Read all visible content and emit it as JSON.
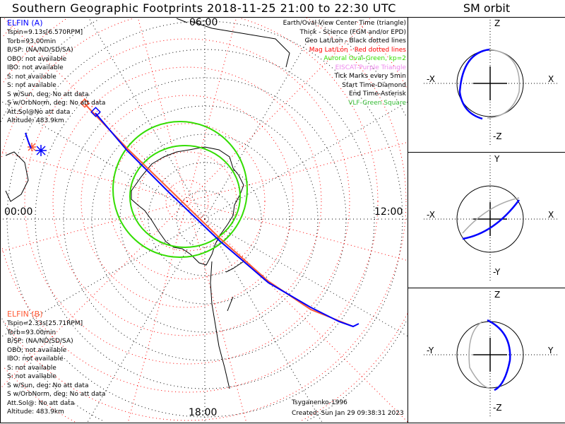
{
  "title": "Southern Geographic Footprints 2018-11-25 21:00 to 22:30 UTC",
  "sm_title": "SM orbit",
  "elfin_a": {
    "name": "ELFIN (A)",
    "color": "#0000ff",
    "lines": [
      "Tspin=9.13s[6.570RPM]",
      "Torb=93.00min",
      "B/SP: (NA/ND/SD/SA)",
      "OBO: not available",
      "IBO: not available",
      "S: not available",
      "S: not available",
      "S w/Sun, deg: No att data",
      "S w/OrbNorm, deg: No att data",
      "Att.Sol@No att data",
      "Altitude: 483.9km"
    ]
  },
  "elfin_b": {
    "name": "ELFIN (B)",
    "color": "#ff5a36",
    "lines": [
      "Tspin=2.33s[25.71RPM]",
      "Torb=93.00min",
      "B/SP: (NA/ND/SD/SA)",
      "OBO: not available",
      "IBO: not available",
      "S: not available",
      "S: not available",
      "S w/Sun, deg: No att data",
      "S w/OrbNorm, deg: No att data",
      "Att.Sol@: No att data",
      "Altitude: 483.9km"
    ]
  },
  "legend": [
    {
      "text": "Earth/Oval View Center Time (triangle)",
      "color": "#000000"
    },
    {
      "text": "Thick - Science (FGM and/or EPD)",
      "color": "#000000"
    },
    {
      "text": "Geo Lat/Lon - Black dotted lines",
      "color": "#000000"
    },
    {
      "text": "Mag Lat/Lon - Red dotted lines",
      "color": "#ff0000"
    },
    {
      "text": "Auroral Oval-Green, kp=2",
      "color": "#33dd00"
    },
    {
      "text": "EISCAT-Purple Triangle",
      "color": "#ee88ee"
    },
    {
      "text": "Tick Marks every 5min",
      "color": "#000000"
    },
    {
      "text": "Start Time-Diamond",
      "color": "#000000"
    },
    {
      "text": "End Time-Asterisk",
      "color": "#000000"
    },
    {
      "text": "VLF-Green Square",
      "color": "#33bb33"
    }
  ],
  "time_labels": {
    "top": "06:00",
    "left": "00:00",
    "right": "12:00",
    "bottom": "18:00"
  },
  "footer": {
    "model": "Tsyganenko-1996",
    "created": "Created: Sun Jan 29 09:38:31 2023"
  },
  "sm_panels": [
    {
      "up": "Z",
      "down": "-Z",
      "left": "-X",
      "right": "X"
    },
    {
      "up": "Y",
      "down": "-Y",
      "left": "-X",
      "right": "X"
    },
    {
      "up": "Z",
      "down": "-Z",
      "left": "-Y",
      "right": "Y"
    }
  ]
}
